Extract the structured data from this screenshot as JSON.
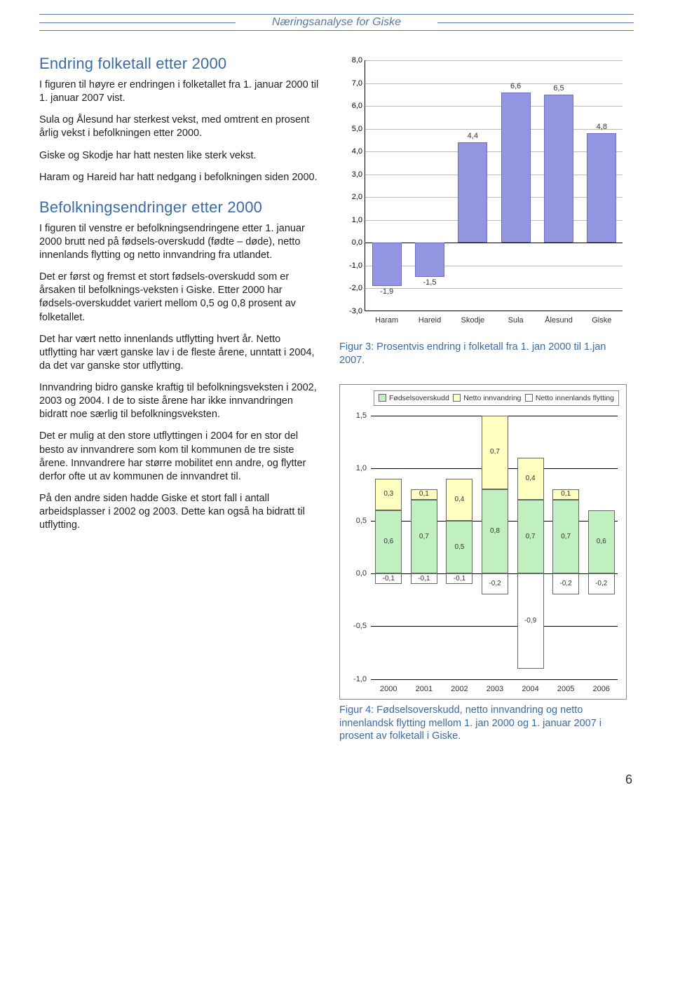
{
  "page_header": "Næringsanalyse for Giske",
  "page_number": "6",
  "left": {
    "h1": "Endring folketall etter 2000",
    "p1": "I figuren til høyre er endringen i folketallet fra 1. januar 2000 til 1. januar 2007 vist.",
    "p2": "Sula og Ålesund har sterkest vekst, med omtrent en prosent årlig vekst i befolkningen etter 2000.",
    "p3": "Giske og Skodje har hatt nesten like sterk vekst.",
    "p4": "Haram og Hareid har hatt nedgang i befolkningen siden 2000.",
    "h2": "Befolkningsendringer etter 2000",
    "p5": "I figuren til venstre er befolkningsendringene etter 1. januar 2000 brutt ned på fødsels-overskudd (fødte – døde), netto innenlands flytting og netto innvandring fra utlandet.",
    "p6": "Det er først og fremst et stort fødsels-overskudd som er årsaken til befolknings-veksten i Giske. Etter 2000 har fødsels-overskuddet variert mellom 0,5 og 0,8 prosent av folketallet.",
    "p7": "Det har vært netto innenlands utflytting hvert år. Netto utflytting har vært ganske lav i de fleste årene, unntatt i 2004, da det var ganske stor utflytting.",
    "p8": "Innvandring bidro ganske kraftig til befolkningsveksten i 2002, 2003 og 2004. I de to siste årene har ikke innvandringen bidratt noe særlig til befolkningsveksten.",
    "p9": "Det er mulig at den store utflyttingen i 2004 for en stor del besto av innvandrere som kom til kommunen de tre siste årene. Innvandrere har større mobilitet enn andre, og flytter derfor ofte ut av kommunen de innvandret til.",
    "p10": "På den andre siden hadde Giske et stort fall i antall arbeidsplasser i 2002 og 2003. Dette kan også ha bidratt til utflytting."
  },
  "chart1": {
    "type": "bar",
    "ylim": [
      -3.0,
      8.0
    ],
    "ytick_step": 1.0,
    "grid_color": "#bbbbbb",
    "bar_color": "#9295e0",
    "bar_border": "#716ac6",
    "categories": [
      "Haram",
      "Hareid",
      "Skodje",
      "Sula",
      "Ålesund",
      "Giske"
    ],
    "values": [
      -1.9,
      -1.5,
      4.4,
      6.6,
      6.5,
      4.8
    ],
    "labels": [
      "-1,9",
      "-1,5",
      "4,4",
      "6,6",
      "6,5",
      "4,8"
    ],
    "caption": "Figur 3: Prosentvis endring i folketall fra 1. jan 2000 til 1.jan 2007."
  },
  "chart2": {
    "type": "stacked-bar",
    "ylim": [
      -1.0,
      1.5
    ],
    "ytick_step": 0.5,
    "legend": [
      {
        "name": "Fødselsoverskudd",
        "color": "#c0f0c0"
      },
      {
        "name": "Netto innvandring",
        "color": "#ffffc0"
      },
      {
        "name": "Netto innenlands flytting",
        "color": "#ffffff"
      }
    ],
    "colors": {
      "fod": "#c0f0c0",
      "inn": "#ffffc0",
      "fly": "#ffffff"
    },
    "years": [
      "2000",
      "2001",
      "2002",
      "2003",
      "2004",
      "2005",
      "2006"
    ],
    "data": [
      {
        "fod": 0.6,
        "inn": 0.3,
        "fly": -0.1
      },
      {
        "fod": 0.7,
        "inn": 0.1,
        "fly": -0.1
      },
      {
        "fod": 0.5,
        "inn": 0.4,
        "fly": -0.1
      },
      {
        "fod": 0.8,
        "inn": 0.7,
        "fly": -0.2
      },
      {
        "fod": 0.7,
        "inn": 0.4,
        "fly": -0.9
      },
      {
        "fod": 0.7,
        "inn": 0.1,
        "fly": -0.2
      },
      {
        "fod": 0.6,
        "inn": 0.0,
        "fly": -0.2
      }
    ],
    "caption": "Figur 4: Fødselsoverskudd, netto innvandring og netto innenlandsk flytting mellom 1. jan 2000 og 1. januar 2007 i prosent av folketall i Giske."
  }
}
